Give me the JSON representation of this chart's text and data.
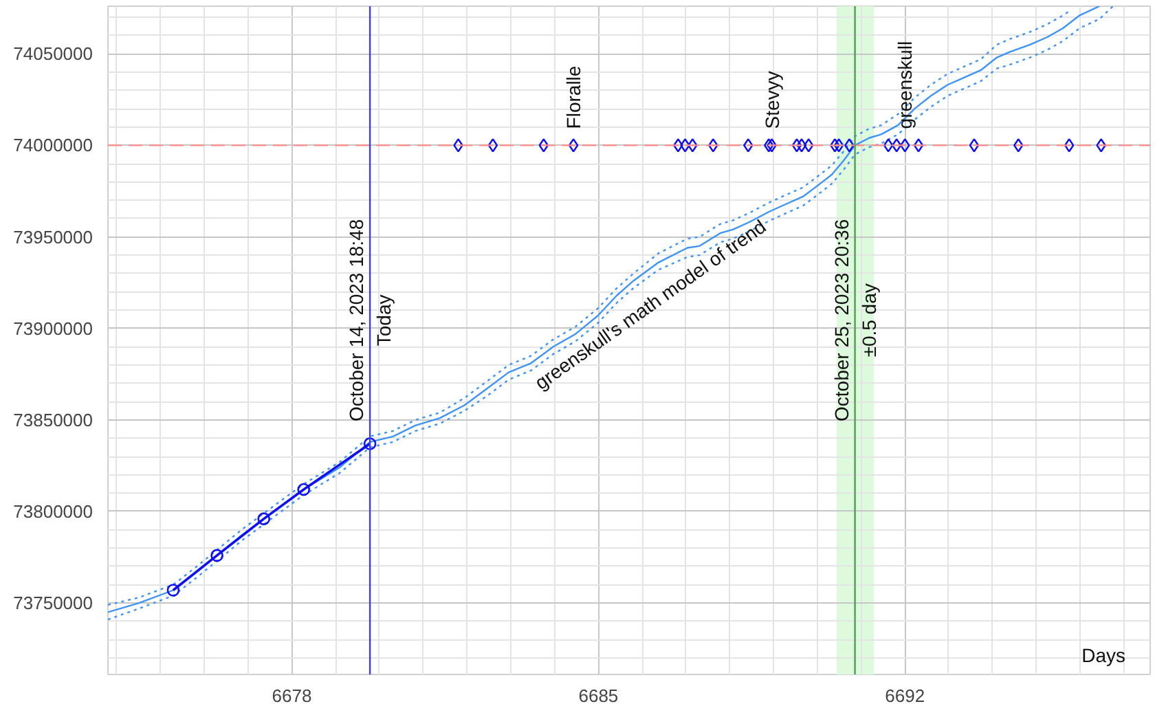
{
  "chart_data": {
    "type": "line",
    "xlabel": "Days",
    "xlim": [
      "2023-10-08T19:12",
      "2023-11-01T14:24"
    ],
    "ylim": [
      73711000,
      74076000
    ],
    "xticks": [
      {
        "value": "2023-10-09",
        "label": null
      },
      {
        "value": "2023-10-10",
        "label": null
      },
      {
        "value": "2023-10-11",
        "label": null
      },
      {
        "value": "2023-10-12",
        "label": null
      },
      {
        "value": "2023-10-13",
        "label": "6678"
      },
      {
        "value": "2023-10-14",
        "label": null
      },
      {
        "value": "2023-10-15",
        "label": null
      },
      {
        "value": "2023-10-16",
        "label": null
      },
      {
        "value": "2023-10-17",
        "label": null
      },
      {
        "value": "2023-10-18",
        "label": null
      },
      {
        "value": "2023-10-19",
        "label": null
      },
      {
        "value": "2023-10-20",
        "label": "6685"
      },
      {
        "value": "2023-10-21",
        "label": null
      },
      {
        "value": "2023-10-22",
        "label": null
      },
      {
        "value": "2023-10-23",
        "label": null
      },
      {
        "value": "2023-10-24",
        "label": null
      },
      {
        "value": "2023-10-25",
        "label": null
      },
      {
        "value": "2023-10-26",
        "label": null
      },
      {
        "value": "2023-10-27",
        "label": "6692"
      },
      {
        "value": "2023-10-28",
        "label": null
      },
      {
        "value": "2023-10-29",
        "label": null
      },
      {
        "value": "2023-10-30",
        "label": null
      },
      {
        "value": "2023-10-31",
        "label": null
      },
      {
        "value": "2023-11-01",
        "label": null
      }
    ],
    "yticks": [
      {
        "value": 73720000,
        "label": null
      },
      {
        "value": 73730000,
        "label": null
      },
      {
        "value": 73740000,
        "label": null
      },
      73750000,
      {
        "value": 73760000,
        "label": null
      },
      {
        "value": 73770000,
        "label": null
      },
      {
        "value": 73780000,
        "label": null
      },
      {
        "value": 73790000,
        "label": null
      },
      73800000,
      {
        "value": 73810000,
        "label": null
      },
      {
        "value": 73820000,
        "label": null
      },
      {
        "value": 73830000,
        "label": null
      },
      {
        "value": 73840000,
        "label": null
      },
      73850000,
      {
        "value": 73860000,
        "label": null
      },
      {
        "value": 73870000,
        "label": null
      },
      {
        "value": 73880000,
        "label": null
      },
      {
        "value": 73890000,
        "label": null
      },
      73900000,
      {
        "value": 73910000,
        "label": null
      },
      {
        "value": 73920000,
        "label": null
      },
      {
        "value": 73930000,
        "label": null
      },
      {
        "value": 73940000,
        "label": null
      },
      73950000,
      {
        "value": 73960000,
        "label": null
      },
      {
        "value": 73970000,
        "label": null
      },
      {
        "value": 73980000,
        "label": null
      },
      {
        "value": 73990000,
        "label": null
      },
      74000000,
      {
        "value": 74010000,
        "label": null
      },
      {
        "value": 74020000,
        "label": null
      },
      {
        "value": 74030000,
        "label": null
      },
      {
        "value": 74040000,
        "label": null
      },
      74050000,
      {
        "value": 74060000,
        "label": null
      },
      {
        "value": 74070000,
        "label": null
      }
    ],
    "grid": true,
    "series": [
      {
        "name": "greenskull's math model of trend",
        "color": "#3d94f6",
        "line_style": "solid",
        "x": [
          "2023-10-08T19:12",
          "2023-10-09T12:14",
          "2023-10-10T06:58",
          "2023-10-10T19:55",
          "2023-10-11T06:58",
          "2023-10-11T20:24",
          "2023-10-12T08:38",
          "2023-10-12T20:53",
          "2023-10-13T06:29",
          "2023-10-14T02:10",
          "2023-10-14T18:48",
          "2023-10-15T07:26",
          "2023-10-15T19:41",
          "2023-10-16T09:07",
          "2023-10-16T22:34",
          "2023-10-17T10:48",
          "2023-10-17T22:48",
          "2023-10-18T11:02",
          "2023-10-18T23:17",
          "2023-10-19T11:31",
          "2023-10-19T23:46",
          "2023-10-20T10:05",
          "2023-10-20T19:12",
          "2023-10-21T08:53",
          "2023-10-22T00:43",
          "2023-10-22T07:26",
          "2023-10-22T18:43",
          "2023-10-23T01:41",
          "2023-10-23T10:34",
          "2023-10-23T22:05",
          "2023-10-24T04:48",
          "2023-10-24T16:05",
          "2023-10-24T22:48",
          "2023-10-25T07:55",
          "2023-10-25T14:38",
          "2023-10-25T20:36",
          "2023-10-26T04:19",
          "2023-10-26T11:02",
          "2023-10-26T20:10",
          "2023-10-27T05:17",
          "2023-10-27T14:10",
          "2023-10-27T23:17",
          "2023-10-28T08:24",
          "2023-10-28T17:31",
          "2023-10-29T02:24",
          "2023-10-29T09:22",
          "2023-10-29T20:38",
          "2023-10-30T05:46",
          "2023-10-30T14:38",
          "2023-10-30T23:46",
          "2023-10-31T10:34"
        ],
        "values": [
          73745000,
          73750000,
          73757000,
          73767000,
          73776000,
          73787000,
          73796000,
          73805000,
          73812000,
          73824000,
          73838000,
          73841000,
          73847000,
          73851000,
          73858000,
          73867000,
          73876000,
          73881000,
          73890000,
          73897000,
          73907000,
          73918000,
          73926000,
          73936000,
          73944000,
          73945000,
          73952000,
          73954000,
          73958000,
          73964000,
          73967000,
          73972000,
          73977000,
          73984000,
          73992000,
          74000000,
          74004000,
          74006000,
          74011000,
          74020000,
          74027000,
          74033000,
          74037000,
          74041000,
          74048000,
          74051000,
          74055000,
          74059000,
          74064000,
          74071000,
          74076000
        ]
      },
      {
        "color": "#3d94f6",
        "line_style": "dotted",
        "x": [
          "2023-10-08T19:12",
          "2023-10-09T12:14",
          "2023-10-10T06:58",
          "2023-10-10T19:55",
          "2023-10-11T06:58",
          "2023-10-11T20:24",
          "2023-10-12T08:38",
          "2023-10-12T20:53",
          "2023-10-13T06:29",
          "2023-10-14T02:10",
          "2023-10-14T18:48",
          "2023-10-15T07:26",
          "2023-10-15T19:41",
          "2023-10-16T09:07",
          "2023-10-16T22:34",
          "2023-10-17T10:48",
          "2023-10-17T22:48",
          "2023-10-18T11:02",
          "2023-10-18T23:17",
          "2023-10-19T11:31",
          "2023-10-19T23:46",
          "2023-10-20T10:05",
          "2023-10-20T19:12",
          "2023-10-21T08:53",
          "2023-10-22T00:43",
          "2023-10-22T07:26",
          "2023-10-22T18:43",
          "2023-10-23T01:41",
          "2023-10-23T10:34",
          "2023-10-23T22:05",
          "2023-10-24T04:48",
          "2023-10-24T16:05",
          "2023-10-24T22:48",
          "2023-10-25T07:55",
          "2023-10-25T14:38",
          "2023-10-25T20:36",
          "2023-10-26T04:19",
          "2023-10-26T11:02",
          "2023-10-26T20:10",
          "2023-10-27T05:17",
          "2023-10-27T14:10",
          "2023-10-27T23:17",
          "2023-10-28T08:24",
          "2023-10-28T17:31",
          "2023-10-29T02:24",
          "2023-10-29T09:22",
          "2023-10-29T20:38",
          "2023-10-30T05:46",
          "2023-10-30T14:38",
          "2023-10-30T19:12"
        ],
        "values": [
          73749000,
          73753000,
          73760000,
          73770000,
          73779000,
          73790000,
          73799000,
          73808000,
          73815000,
          73827000,
          73841000,
          73844000,
          73850000,
          73854000,
          73862000,
          73871000,
          73880000,
          73885000,
          73894000,
          73901000,
          73911000,
          73922000,
          73930000,
          73941000,
          73949000,
          73950000,
          73957000,
          73959000,
          73963000,
          73969000,
          73972000,
          73977000,
          73982000,
          73989000,
          73997000,
          74005000,
          74009000,
          74011000,
          74017000,
          74026000,
          74033000,
          74039000,
          74043000,
          74047000,
          74055000,
          74058000,
          74062000,
          74066000,
          74071000,
          74074000
        ]
      },
      {
        "color": "#3d94f6",
        "line_style": "dotted",
        "x": [
          "2023-10-08T19:12",
          "2023-10-09T12:14",
          "2023-10-10T06:58",
          "2023-10-10T19:55",
          "2023-10-11T06:58",
          "2023-10-11T20:24",
          "2023-10-12T08:38",
          "2023-10-12T20:53",
          "2023-10-13T06:29",
          "2023-10-14T02:10",
          "2023-10-14T18:48",
          "2023-10-15T07:26",
          "2023-10-15T19:41",
          "2023-10-16T09:07",
          "2023-10-16T22:34",
          "2023-10-17T10:48",
          "2023-10-17T22:48",
          "2023-10-18T11:02",
          "2023-10-18T23:17",
          "2023-10-19T11:31",
          "2023-10-19T23:46",
          "2023-10-20T10:05",
          "2023-10-20T19:12",
          "2023-10-21T08:53",
          "2023-10-22T00:43",
          "2023-10-22T07:26",
          "2023-10-22T18:43",
          "2023-10-23T01:41",
          "2023-10-23T10:34",
          "2023-10-23T22:05",
          "2023-10-24T04:48",
          "2023-10-24T16:05",
          "2023-10-24T22:48",
          "2023-10-25T07:55",
          "2023-10-25T14:38",
          "2023-10-25T20:36",
          "2023-10-26T04:19",
          "2023-10-26T11:02",
          "2023-10-26T20:10",
          "2023-10-27T05:17",
          "2023-10-27T14:10",
          "2023-10-27T23:17",
          "2023-10-28T08:24",
          "2023-10-28T17:31",
          "2023-10-29T02:24",
          "2023-10-29T09:22",
          "2023-10-29T20:38",
          "2023-10-30T05:46",
          "2023-10-30T14:38",
          "2023-10-30T23:46",
          "2023-10-31T10:34",
          "2023-10-31T18:00"
        ],
        "values": [
          73741000,
          73747000,
          73754000,
          73764000,
          73773000,
          73784000,
          73793000,
          73802000,
          73809000,
          73821000,
          73835000,
          73838000,
          73844000,
          73848000,
          73855000,
          73863000,
          73872000,
          73877000,
          73886000,
          73893000,
          73903000,
          73914000,
          73922000,
          73932000,
          73939000,
          73940000,
          73947000,
          73949000,
          73953000,
          73959000,
          73962000,
          73967000,
          73972000,
          73979000,
          73987000,
          73995000,
          73999000,
          74001000,
          74006000,
          74014000,
          74021000,
          74027000,
          74031000,
          74035000,
          74042000,
          74044000,
          74048000,
          74052000,
          74057000,
          74064000,
          74069000,
          74076000
        ]
      },
      {
        "color": "#1010f0",
        "marker": "circle",
        "line_style": "solid",
        "x": [
          "2023-10-10T06:58",
          "2023-10-11T06:58",
          "2023-10-12T08:38",
          "2023-10-13T06:29",
          "2023-10-14T18:48"
        ],
        "values": [
          73757000,
          73776000,
          73796000,
          73812000,
          73837000
        ]
      },
      {
        "type": "scatter",
        "color": "#1010f0",
        "marker": "diamond",
        "x": [
          "2023-10-16T19:12",
          "2023-10-17T14:10",
          "2023-10-18T18:00",
          "2023-10-19T10:19",
          "2023-10-21T19:41",
          "2023-10-21T23:31",
          "2023-10-22T03:36",
          "2023-10-22T14:53",
          "2023-10-23T10:05",
          "2023-10-23T21:22",
          "2023-10-23T23:02",
          "2023-10-24T12:43",
          "2023-10-24T15:22",
          "2023-10-24T19:12",
          "2023-10-25T09:36",
          "2023-10-25T11:46",
          "2023-10-25T17:31",
          "2023-10-26T14:53",
          "2023-10-26T19:26",
          "2023-10-27T00:00",
          "2023-10-27T07:26",
          "2023-10-28T13:55",
          "2023-10-29T14:10",
          "2023-10-30T18:00",
          "2023-10-31T11:31"
        ],
        "values": [
          74000000,
          74000000,
          74000000,
          74000000,
          74000000,
          74000000,
          74000000,
          74000000,
          74000000,
          74000000,
          74000000,
          74000000,
          74000000,
          74000000,
          74000000,
          74000000,
          74000000,
          74000000,
          74000000,
          74000000,
          74000000,
          74000000,
          74000000,
          74000000,
          74000000
        ]
      }
    ],
    "ref_lines": [
      {
        "axis": "y",
        "value": 74000000,
        "color": "#ff8c8c",
        "line_style": "dashed"
      },
      {
        "axis": "x",
        "value": "2023-10-14T18:48",
        "label": "October 14, 2023 18:48\nToday",
        "color": "#3c3cf0",
        "line_style": "solid"
      },
      {
        "axis": "x",
        "value": "2023-10-25T20:36",
        "label": "October 25, 2023 20:36\n±0.5 day",
        "color": "#4f9f4f",
        "line_style": "solid"
      }
    ],
    "bands": [
      {
        "axis": "x",
        "from": "2023-10-25T10:34",
        "to": "2023-10-26T06:58",
        "color": "#ddfadd"
      }
    ],
    "annotations": [
      {
        "text": "Floralle",
        "x": "2023-10-19T10:19",
        "y": 74000000
      },
      {
        "text": "Stevyy",
        "x": "2023-10-23T23:02",
        "y": 74000000
      },
      {
        "text": "greenskull",
        "x": "2023-10-27T00:00",
        "y": 74000000
      }
    ]
  }
}
